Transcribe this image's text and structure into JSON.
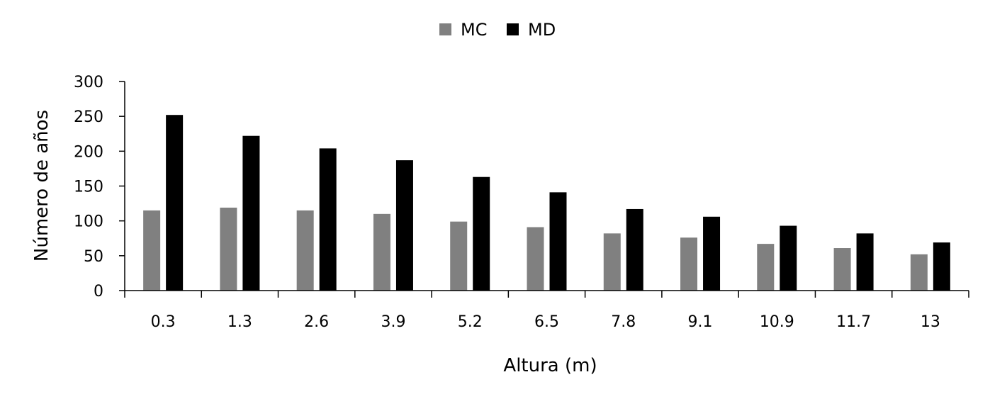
{
  "chart_data": {
    "type": "bar",
    "title": "",
    "xlabel": "Altura (m)",
    "ylabel": "Número de años",
    "categories": [
      "0.3",
      "1.3",
      "2.6",
      "3.9",
      "5.2",
      "6.5",
      "7.8",
      "9.1",
      "10.9",
      "11.7",
      "13"
    ],
    "series": [
      {
        "name": "MC",
        "color": "#808080",
        "values": [
          115,
          119,
          115,
          110,
          99,
          91,
          82,
          76,
          67,
          61,
          52
        ]
      },
      {
        "name": "MD",
        "color": "#000000",
        "values": [
          252,
          222,
          204,
          187,
          163,
          141,
          117,
          106,
          93,
          82,
          69
        ]
      }
    ],
    "ylim": [
      0,
      300
    ],
    "yticks": [
      "0",
      "50",
      "100",
      "150",
      "200",
      "250",
      "300"
    ],
    "grid": false,
    "legend_position": "top-center"
  }
}
